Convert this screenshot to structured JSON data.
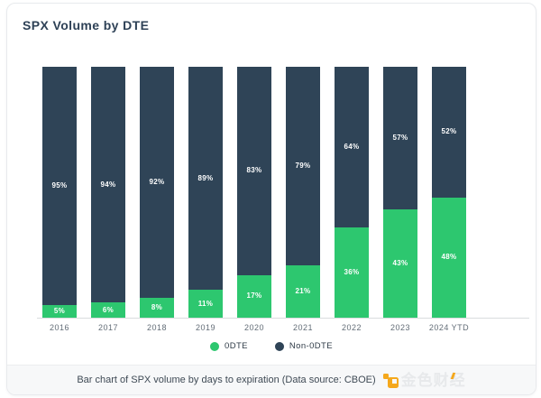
{
  "title": "SPX Volume by DTE",
  "chart_data": {
    "type": "bar",
    "stacked": true,
    "orientation": "vertical",
    "title": "SPX Volume by DTE",
    "categories": [
      "2016",
      "2017",
      "2018",
      "2019",
      "2020",
      "2021",
      "2022",
      "2023",
      "2024 YTD"
    ],
    "series": [
      {
        "name": "0DTE",
        "color": "#2dc76f",
        "values": [
          5,
          6,
          8,
          11,
          17,
          21,
          36,
          43,
          48
        ]
      },
      {
        "name": "Non-0DTE",
        "color": "#2f4457",
        "values": [
          95,
          94,
          92,
          89,
          83,
          79,
          64,
          57,
          52
        ]
      }
    ],
    "value_label_suffix": "%",
    "value_label_color": "#ffffff",
    "ylim": [
      0,
      100
    ],
    "grid": false,
    "legend_position": "bottom"
  },
  "legend": {
    "items": [
      {
        "label": "0DTE",
        "color": "#2dc76f"
      },
      {
        "label": "Non-0DTE",
        "color": "#2f4457"
      }
    ]
  },
  "footer": {
    "caption": "Bar chart of SPX volume by days to expiration (Data source: CBOE)",
    "brand": "金色财经",
    "brand_icon": "jinse-finance-logo",
    "brand_color": "#f5a81c"
  },
  "colors": {
    "card_background": "#ffffff",
    "card_border": "#e8eaed",
    "axis_line": "#d9dcde",
    "title_text": "#2e4156",
    "axis_label_text": "#636d77",
    "footer_background": "#f7f8f9",
    "footer_text": "#3f4a55"
  }
}
